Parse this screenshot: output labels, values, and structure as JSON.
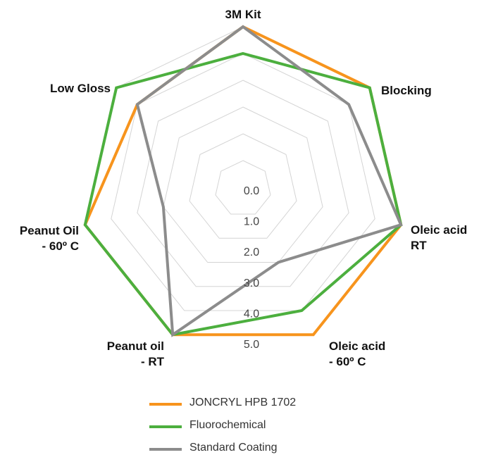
{
  "chart_data": {
    "type": "radar",
    "title": "",
    "axes": [
      {
        "lines": [
          "3M Kit"
        ]
      },
      {
        "lines": [
          "Blocking"
        ]
      },
      {
        "lines": [
          "Oleic acid",
          "RT"
        ]
      },
      {
        "lines": [
          "Oleic acid",
          "- 60º C"
        ]
      },
      {
        "lines": [
          "Peanut oil",
          "- RT"
        ]
      },
      {
        "lines": [
          "Peanut Oil",
          "- 60º C"
        ]
      },
      {
        "lines": [
          "Low Gloss"
        ]
      }
    ],
    "range": [
      0,
      5
    ],
    "ticks": [
      "0.0",
      "1.0",
      "2.0",
      "3.0",
      "4.0",
      "5.0"
    ],
    "grid": true,
    "legend_position": "bottom",
    "series": [
      {
        "name": "JONCRYL HPB 1702",
        "color": "#F7941D",
        "values": [
          5.0,
          5.0,
          5.0,
          5.0,
          5.0,
          5.0,
          4.0
        ]
      },
      {
        "name": "Fluorochemical",
        "color": "#4CAF3E",
        "values": [
          4.0,
          5.0,
          5.0,
          4.0,
          5.0,
          5.0,
          5.0
        ]
      },
      {
        "name": "Standard Coating",
        "color": "#8C8C8C",
        "values": [
          5.0,
          4.0,
          5.0,
          2.0,
          5.0,
          2.0,
          4.0
        ]
      }
    ]
  }
}
